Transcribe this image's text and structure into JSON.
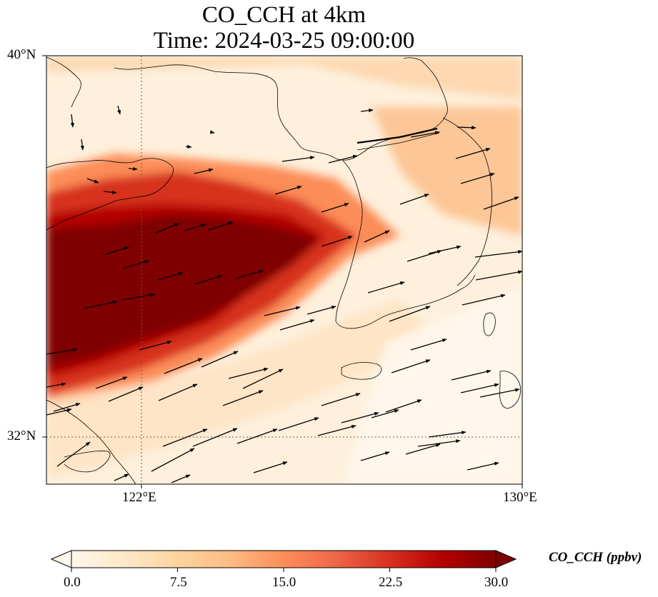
{
  "title": {
    "line1": "CO_CCH at 4km",
    "line2": "Time: 2024-03-25 09:00:00"
  },
  "map": {
    "lat_labels": [
      "40°N",
      "32°N"
    ],
    "lon_labels": [
      "122°E",
      "130°E"
    ],
    "lat_range": [
      31.0,
      40.0
    ],
    "lon_range": [
      120.4,
      130.0
    ],
    "gridlines": "dotted",
    "field": "CO_CCH",
    "wind_vectors": true
  },
  "colorbar": {
    "label": "CO_CCH (ppbv)",
    "ticks": [
      "0.0",
      "7.5",
      "15.0",
      "22.5",
      "30.0"
    ],
    "range": [
      0,
      30
    ],
    "colormap": "OrRd",
    "colors": [
      "#fff7ec",
      "#fee8c8",
      "#fdd49e",
      "#fdbb84",
      "#fc8d59",
      "#ef6548",
      "#d7301f",
      "#b30000",
      "#7f0000"
    ],
    "extend": "both"
  }
}
